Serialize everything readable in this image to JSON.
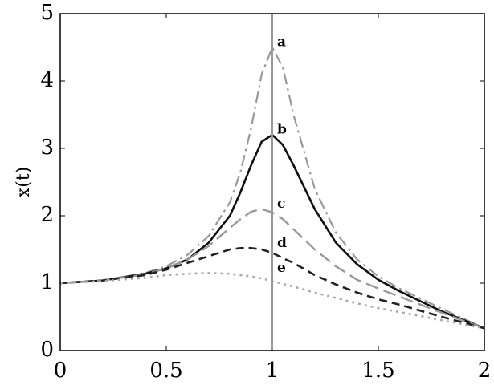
{
  "chart_data": {
    "type": "line",
    "ylabel": "x(t)",
    "x": [
      0,
      0.2,
      0.4,
      0.5,
      0.6,
      0.7,
      0.8,
      0.85,
      0.9,
      0.95,
      1.0,
      1.05,
      1.1,
      1.2,
      1.3,
      1.4,
      1.5,
      1.6,
      1.8,
      2.0
    ],
    "series": [
      {
        "name": "a",
        "color": "#999999",
        "dash": "14 5 3 5",
        "width": 2.2,
        "values": [
          1.0,
          1.04,
          1.15,
          1.25,
          1.42,
          1.7,
          2.2,
          2.65,
          3.3,
          4.1,
          4.5,
          4.2,
          3.5,
          2.4,
          1.75,
          1.35,
          1.1,
          0.92,
          0.62,
          0.33
        ]
      },
      {
        "name": "b",
        "color": "#111111",
        "dash": "none",
        "width": 2.6,
        "values": [
          1.0,
          1.04,
          1.14,
          1.22,
          1.35,
          1.6,
          2.0,
          2.35,
          2.75,
          3.1,
          3.2,
          3.05,
          2.75,
          2.1,
          1.6,
          1.28,
          1.05,
          0.88,
          0.58,
          0.33
        ]
      },
      {
        "name": "c",
        "color": "#999999",
        "dash": "16 7",
        "width": 2.4,
        "values": [
          1.0,
          1.04,
          1.13,
          1.22,
          1.35,
          1.55,
          1.82,
          1.95,
          2.06,
          2.1,
          2.05,
          1.95,
          1.8,
          1.5,
          1.25,
          1.05,
          0.92,
          0.8,
          0.56,
          0.33
        ]
      },
      {
        "name": "d",
        "color": "#222222",
        "dash": "10 6",
        "width": 2.6,
        "values": [
          1.0,
          1.04,
          1.12,
          1.2,
          1.3,
          1.4,
          1.5,
          1.52,
          1.52,
          1.5,
          1.45,
          1.37,
          1.3,
          1.12,
          0.98,
          0.86,
          0.76,
          0.68,
          0.5,
          0.33
        ]
      },
      {
        "name": "e",
        "color": "#aaaaaa",
        "dash": "3 5",
        "width": 2.6,
        "values": [
          1.0,
          1.03,
          1.08,
          1.12,
          1.14,
          1.15,
          1.14,
          1.12,
          1.1,
          1.07,
          1.03,
          0.99,
          0.95,
          0.86,
          0.78,
          0.7,
          0.63,
          0.57,
          0.45,
          0.33
        ]
      }
    ],
    "vline": 1,
    "vline_color": "#999999",
    "xlim": [
      0,
      2
    ],
    "xticks": [
      0,
      0.5,
      1,
      1.5,
      2
    ],
    "ylim": [
      0,
      5
    ],
    "yticks": [
      0,
      1,
      2,
      3,
      4,
      5
    ],
    "grid": false
  }
}
